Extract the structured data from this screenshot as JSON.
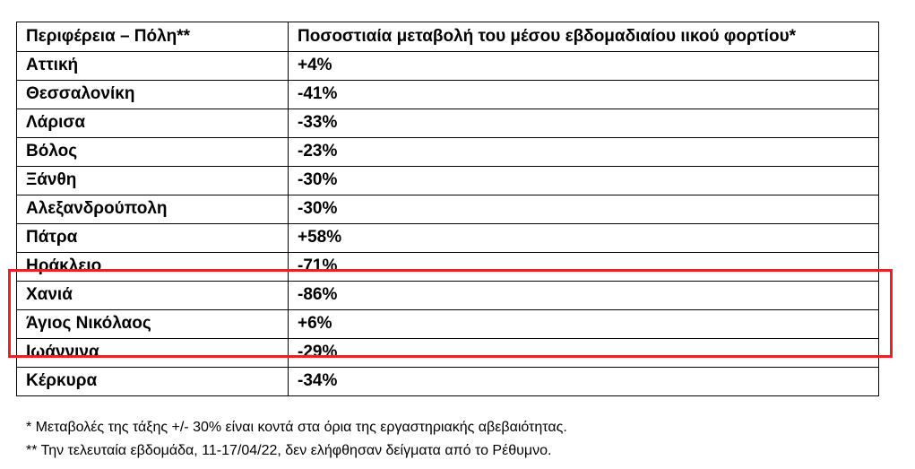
{
  "table": {
    "headers": {
      "region": "Περιφέρεια – Πόλη**",
      "change": "Ποσοστιαία μεταβολή του μέσου εβδομαδιαίου ιικού φορτίου*"
    },
    "rows": [
      {
        "region": "Αττική",
        "change": "+4%"
      },
      {
        "region": "Θεσσαλονίκη",
        "change": "-41%"
      },
      {
        "region": "Λάρισα",
        "change": "-33%"
      },
      {
        "region": "Βόλος",
        "change": "-23%"
      },
      {
        "region": "Ξάνθη",
        "change": "-30%"
      },
      {
        "region": "Αλεξανδρούπολη",
        "change": "-30%"
      },
      {
        "region": "Πάτρα",
        "change": "+58%"
      },
      {
        "region": "Ηράκλειο",
        "change": "-71%"
      },
      {
        "region": "Χανιά",
        "change": "-86%"
      },
      {
        "region": "Άγιος Νικόλαος",
        "change": "+6%"
      },
      {
        "region": "Ιωάννινα",
        "change": "-29%"
      },
      {
        "region": "Κέρκυρα",
        "change": "-34%"
      }
    ]
  },
  "footnotes": [
    "* Μεταβολές της τάξης +/- 30% είναι κοντά στα όρια της εργαστηριακής αβεβαιότητας.",
    "** Την τελευταία εβδομάδα, 11-17/04/22, δεν ελήφθησαν δείγματα από το Ρέθυμνο."
  ],
  "highlight": {
    "color": "#e0232d",
    "rows": [
      "Ηράκλειο",
      "Χανιά",
      "Άγιος Νικόλαος"
    ]
  }
}
